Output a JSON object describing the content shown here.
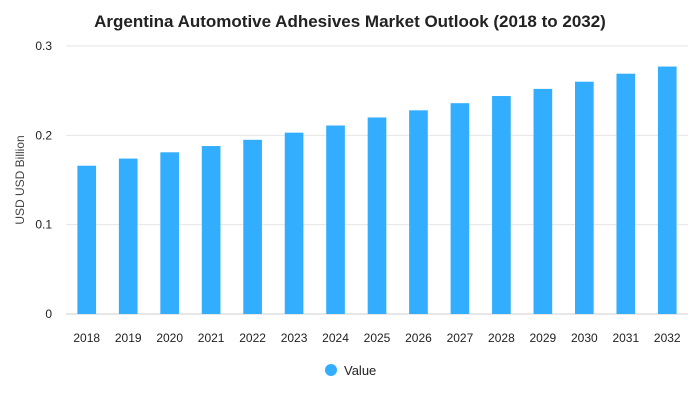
{
  "chart_data": {
    "type": "bar",
    "title": "Argentina Automotive Adhesives Market Outlook (2018 to 2032)",
    "xlabel": "",
    "ylabel": "USD USD Billion",
    "categories": [
      "2018",
      "2019",
      "2020",
      "2021",
      "2022",
      "2023",
      "2024",
      "2025",
      "2026",
      "2027",
      "2028",
      "2029",
      "2030",
      "2031",
      "2032"
    ],
    "series": [
      {
        "name": "Value",
        "values": [
          0.166,
          0.174,
          0.181,
          0.188,
          0.195,
          0.203,
          0.211,
          0.22,
          0.228,
          0.236,
          0.244,
          0.252,
          0.26,
          0.269,
          0.277
        ],
        "color": "#33aeff"
      }
    ],
    "yticks": [
      "0",
      "0.1",
      "0.2",
      "0.3"
    ],
    "ylim": [
      0,
      0.3
    ],
    "grid": true,
    "legend_position": "bottom"
  }
}
